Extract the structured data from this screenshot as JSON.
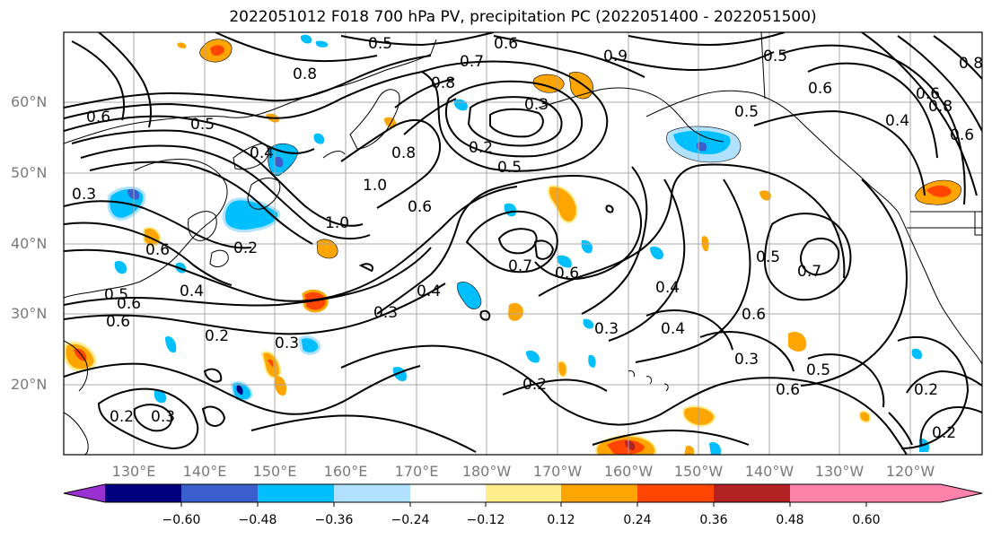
{
  "title": "2022051012 F018 700 hPa PV, precipitation PC (2022051400 - 2022051500)",
  "lat_labels": [
    "60°N",
    "50°N",
    "40°N",
    "30°N",
    "20°N"
  ],
  "lon_labels": [
    "130°E",
    "140°E",
    "150°E",
    "160°E",
    "170°E",
    "180°W",
    "170°W",
    "160°W",
    "150°W",
    "140°W",
    "130°W",
    "120°W"
  ],
  "colorbar": {
    "colors": [
      "#9b30d0",
      "#00007f",
      "#3a5fcd",
      "#00bfff",
      "#b0e2ff",
      "#ffffff",
      "#ffec8b",
      "#ffa500",
      "#ff4500",
      "#b22222",
      "#ff82ab"
    ],
    "ticks": [
      "−0.60",
      "−0.48",
      "−0.36",
      "−0.24",
      "−0.12",
      "0.12",
      "0.24",
      "0.36",
      "0.48",
      "0.60"
    ]
  },
  "contour_labels": [
    "0.5",
    "0.6",
    "0.7",
    "0.8",
    "0.9",
    "0.5",
    "0.8",
    "0.6",
    "0.5",
    "0.6",
    "0.4",
    "0.8",
    "0.6",
    "0.5",
    "0.4",
    "0.8",
    "0.3",
    "0.2",
    "0.5",
    "0.8",
    "1.0",
    "0.6",
    "1.0",
    "0.6",
    "0.2",
    "0.6",
    "0.7",
    "0.6",
    "0.5",
    "0.7",
    "0.4",
    "0.4",
    "0.3",
    "0.6",
    "0.3",
    "0.4",
    "0.5",
    "0.6",
    "0.3",
    "0.2",
    "0.3",
    "0.2",
    "0.5",
    "0.6",
    "0.2",
    "0.2",
    "0.3",
    "0.2",
    "0.6",
    "0.3",
    "0.4"
  ]
}
